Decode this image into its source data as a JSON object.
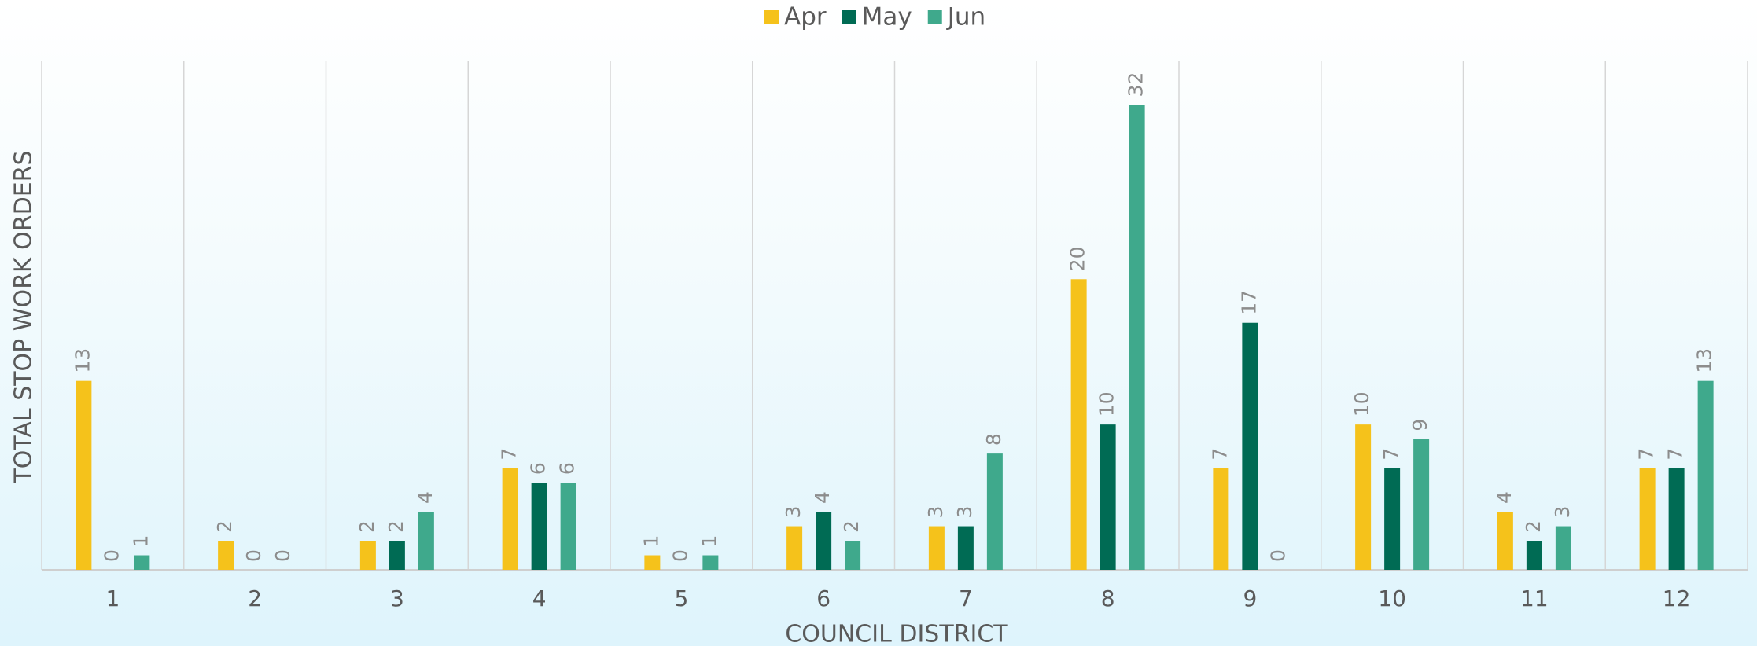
{
  "chart_data": {
    "type": "bar",
    "x_label": "COUNCIL DISTRICT",
    "y_label": "TOTAL STOP WORK ORDERS",
    "categories": [
      "1",
      "2",
      "3",
      "4",
      "5",
      "6",
      "7",
      "8",
      "9",
      "10",
      "11",
      "12"
    ],
    "series": [
      {
        "name": "Apr",
        "color": "#F5C21B",
        "values": [
          13,
          2,
          2,
          7,
          1,
          3,
          3,
          20,
          7,
          10,
          4,
          7
        ]
      },
      {
        "name": "May",
        "color": "#006B54",
        "values": [
          0,
          0,
          2,
          6,
          0,
          4,
          3,
          10,
          17,
          7,
          2,
          7
        ]
      },
      {
        "name": "Jun",
        "color": "#3FA98C",
        "values": [
          1,
          0,
          4,
          6,
          1,
          2,
          8,
          32,
          0,
          9,
          3,
          13
        ]
      }
    ],
    "ylim": [
      0,
      35
    ],
    "legend": "top"
  }
}
